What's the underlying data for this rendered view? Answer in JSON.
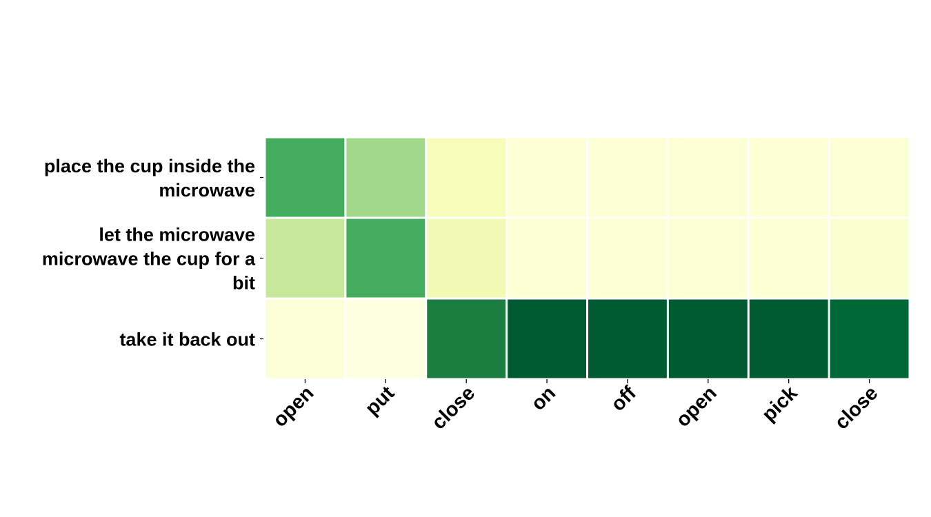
{
  "chart_data": {
    "type": "heatmap",
    "title": "",
    "xlabel": "",
    "ylabel": "",
    "x_categories": [
      "open",
      "put",
      "close",
      "on",
      "off",
      "open",
      "pick",
      "close"
    ],
    "y_categories": [
      [
        "place the cup inside the",
        "microwave"
      ],
      [
        "let the microwave",
        "microwave the cup for a",
        "bit"
      ],
      [
        "take it back out"
      ]
    ],
    "values": [
      [
        0.62,
        0.4,
        0.12,
        0.05,
        0.05,
        0.05,
        0.05,
        0.05
      ],
      [
        0.3,
        0.62,
        0.15,
        0.05,
        0.05,
        0.05,
        0.05,
        0.06
      ],
      [
        0.04,
        0.01,
        0.78,
        0.92,
        0.92,
        0.92,
        0.92,
        0.88
      ]
    ],
    "colormap": "YlGn",
    "vmin": 0,
    "vmax": 1,
    "colorbar": false,
    "grid_line_color": "#ffffff"
  }
}
